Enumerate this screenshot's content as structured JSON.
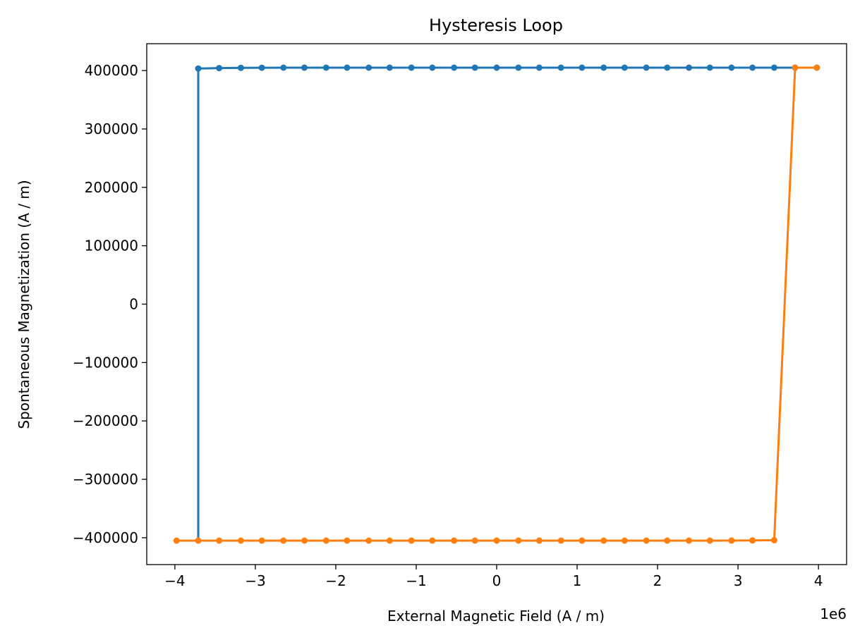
{
  "chart_data": {
    "type": "line",
    "title": "Hysteresis Loop",
    "xlabel": "External Magnetic Field (A / m)",
    "ylabel": "Spontaneous Magnetization (A / m)",
    "x_offset_label": "1e6",
    "xlim": [
      -4.35,
      4.35
    ],
    "ylim": [
      -446000,
      446000
    ],
    "x_scale": "1e6",
    "xticks": [
      -4,
      -3,
      -2,
      -1,
      0,
      1,
      2,
      3,
      4
    ],
    "xtick_labels": [
      "−4",
      "−3",
      "−2",
      "−1",
      "0",
      "1",
      "2",
      "3",
      "4"
    ],
    "yticks": [
      400000,
      300000,
      200000,
      100000,
      0,
      -100000,
      -200000,
      -300000,
      -400000
    ],
    "ytick_labels": [
      "400000",
      "300000",
      "200000",
      "100000",
      "0",
      "−100000",
      "−200000",
      "−300000",
      "−400000"
    ],
    "grid": false,
    "legend": false,
    "series": [
      {
        "color": "#1f77b4",
        "marker": "circle",
        "x": [
          3.98,
          3.71,
          3.45,
          3.18,
          2.92,
          2.65,
          2.39,
          2.12,
          1.86,
          1.59,
          1.33,
          1.06,
          0.8,
          0.53,
          0.27,
          0.0,
          -0.27,
          -0.53,
          -0.8,
          -1.06,
          -1.33,
          -1.59,
          -1.86,
          -2.12,
          -2.39,
          -2.65,
          -2.92,
          -3.18,
          -3.45,
          -3.71
        ],
        "y": [
          405000,
          405000,
          405000,
          405000,
          405000,
          405000,
          405000,
          405000,
          405000,
          405000,
          405000,
          405000,
          405000,
          405000,
          405000,
          405000,
          405000,
          405000,
          405000,
          405000,
          405000,
          405000,
          405000,
          405000,
          405000,
          405000,
          404800,
          404600,
          404200,
          403500
        ],
        "tail_x": [
          -3.71
        ],
        "tail_y": [
          -405000
        ]
      },
      {
        "color": "#ff7f0e",
        "marker": "circle",
        "x": [
          -3.98,
          -3.71,
          -3.45,
          -3.18,
          -2.92,
          -2.65,
          -2.39,
          -2.12,
          -1.86,
          -1.59,
          -1.33,
          -1.06,
          -0.8,
          -0.53,
          -0.27,
          0.0,
          0.27,
          0.53,
          0.8,
          1.06,
          1.33,
          1.59,
          1.86,
          2.12,
          2.39,
          2.65,
          2.92,
          3.18,
          3.45,
          3.71,
          3.98
        ],
        "y": [
          -405000,
          -405000,
          -405000,
          -405000,
          -405000,
          -405000,
          -405000,
          -405000,
          -405000,
          -405000,
          -405000,
          -405000,
          -405000,
          -405000,
          -405000,
          -405000,
          -405000,
          -405000,
          -405000,
          -405000,
          -405000,
          -405000,
          -405000,
          -405000,
          -405000,
          -405000,
          -404800,
          -404600,
          -404200,
          405000,
          405000
        ]
      }
    ]
  }
}
